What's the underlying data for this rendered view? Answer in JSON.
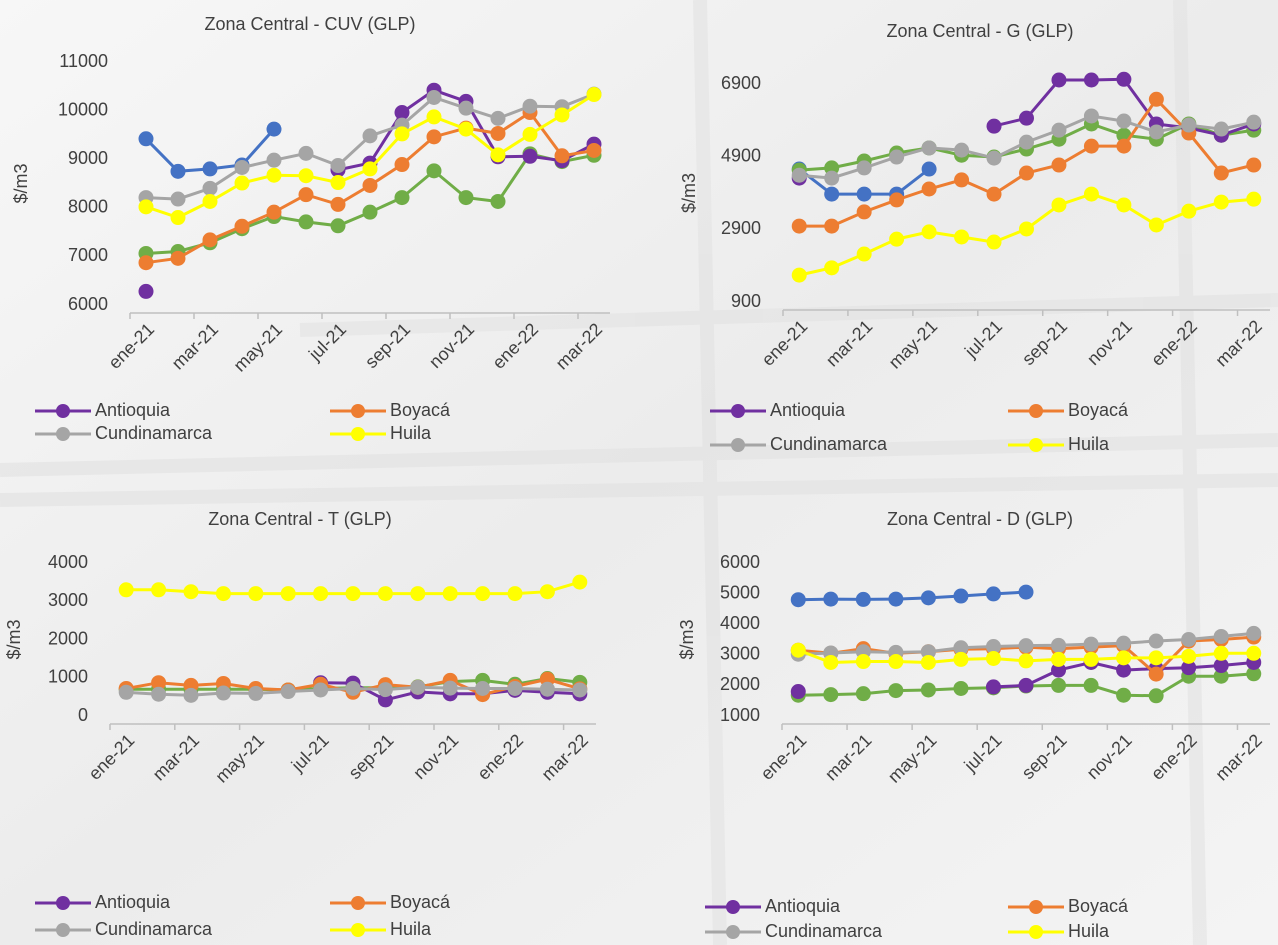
{
  "chart_data": [
    {
      "type": "line",
      "title": "Zona Central - CUV (GLP)",
      "y_label": "$/m3",
      "categories": [
        "ene-21",
        null,
        "mar-21",
        null,
        "may-21",
        null,
        "jul-21",
        null,
        "sep-21",
        null,
        "nov-21",
        null,
        "ene-22",
        null,
        "mar-22"
      ],
      "ylim": [
        6000,
        11000
      ],
      "yticks": [
        6000,
        7000,
        8000,
        9000,
        10000,
        11000
      ],
      "series": [
        {
          "color": "#4472c4",
          "values": [
            9420,
            8750,
            8800,
            8880,
            9620,
            null,
            null,
            null,
            null,
            null,
            null,
            null,
            null,
            null,
            null
          ]
        },
        {
          "color": "#70ad47",
          "values": [
            7060,
            7100,
            7280,
            7570,
            7820,
            7710,
            7630,
            7910,
            8210,
            8760,
            8210,
            8130,
            9110,
            8950,
            9080
          ]
        },
        {
          "name": "Antioquia",
          "color": "#7030a0",
          "values": [
            6280,
            null,
            null,
            null,
            null,
            null,
            8780,
            8920,
            9960,
            10420,
            10190,
            9050,
            9060,
            8970,
            9310
          ]
        },
        {
          "name": "Boyacá",
          "color": "#ed7d31",
          "values": [
            6870,
            6960,
            7340,
            7620,
            7910,
            8270,
            8070,
            8460,
            8890,
            9460,
            9640,
            9530,
            9960,
            9070,
            9180
          ]
        },
        {
          "name": "Cundinamarca",
          "color": "#a5a5a5",
          "values": [
            8210,
            8180,
            8400,
            8830,
            8980,
            9120,
            8870,
            9480,
            9700,
            10270,
            10050,
            9840,
            10090,
            10080,
            10340
          ]
        },
        {
          "name": "Huila",
          "color": "#ffff00",
          "values": [
            8020,
            7800,
            8130,
            8510,
            8670,
            8660,
            8520,
            8800,
            9520,
            9870,
            9620,
            9090,
            9510,
            9910,
            10330
          ]
        }
      ]
    },
    {
      "type": "line",
      "title": "Zona Central - G (GLP)",
      "y_label": "$/m3",
      "categories": [
        "ene-21",
        null,
        "mar-21",
        null,
        "may-21",
        null,
        "jul-21",
        null,
        "sep-21",
        null,
        "nov-21",
        null,
        "ene-22",
        null,
        "mar-22"
      ],
      "ylim": [
        900,
        6900
      ],
      "yticks": [
        900,
        2900,
        4900,
        6900
      ],
      "series": [
        {
          "color": "#4472c4",
          "values": [
            4560,
            3870,
            3870,
            3870,
            4560,
            null,
            null,
            null,
            null,
            null,
            null,
            null,
            null,
            null,
            null
          ]
        },
        {
          "color": "#70ad47",
          "values": [
            4530,
            4590,
            4780,
            5000,
            5140,
            4940,
            4890,
            5110,
            5380,
            5800,
            5490,
            5380,
            5800,
            5490,
            5630
          ]
        },
        {
          "name": "Antioquia",
          "color": "#7030a0",
          "values": [
            4310,
            null,
            null,
            null,
            null,
            null,
            5740,
            5960,
            7010,
            7010,
            7030,
            5800,
            5690,
            5490,
            5800
          ]
        },
        {
          "name": "Boyacá",
          "color": "#ed7d31",
          "values": [
            2990,
            2990,
            3380,
            3710,
            4010,
            4260,
            3870,
            4450,
            4670,
            5190,
            5190,
            6480,
            5550,
            4450,
            4670
          ]
        },
        {
          "name": "Cundinamarca",
          "color": "#a5a5a5",
          "values": [
            4390,
            4310,
            4590,
            4890,
            5140,
            5080,
            4860,
            5300,
            5630,
            6020,
            5880,
            5580,
            5770,
            5660,
            5850
          ]
        },
        {
          "name": "Huila",
          "color": "#ffff00",
          "values": [
            1640,
            1840,
            2220,
            2630,
            2830,
            2690,
            2550,
            2910,
            3570,
            3870,
            3570,
            3020,
            3400,
            3650,
            3730
          ]
        }
      ]
    },
    {
      "type": "line",
      "title": "Zona Central - T (GLP)",
      "y_label": "$/m3",
      "categories": [
        "ene-21",
        null,
        "mar-21",
        null,
        "may-21",
        null,
        "jul-21",
        null,
        "sep-21",
        null,
        "nov-21",
        null,
        "ene-22",
        null,
        "mar-22"
      ],
      "ylim": [
        0,
        4000
      ],
      "yticks": [
        0,
        1000,
        2000,
        3000,
        4000
      ],
      "series": [
        {
          "color": "#70ad47",
          "values": [
            700,
            700,
            700,
            700,
            700,
            680,
            720,
            740,
            740,
            760,
            900,
            930,
            830,
            980,
            880
          ]
        },
        {
          "name": "Antioquia",
          "color": "#7030a0",
          "values": [
            null,
            null,
            null,
            null,
            null,
            null,
            870,
            860,
            420,
            630,
            580,
            580,
            670,
            620,
            580
          ]
        },
        {
          "name": "Boyacá",
          "color": "#ed7d31",
          "values": [
            720,
            870,
            800,
            850,
            720,
            680,
            830,
            620,
            820,
            750,
            930,
            560,
            770,
            960,
            710
          ]
        },
        {
          "name": "Cundinamarca",
          "color": "#a5a5a5",
          "values": [
            620,
            570,
            540,
            600,
            590,
            640,
            680,
            720,
            690,
            750,
            730,
            720,
            720,
            700,
            680
          ]
        },
        {
          "name": "Huila",
          "color": "#ffff00",
          "values": [
            3300,
            3300,
            3250,
            3200,
            3200,
            3200,
            3200,
            3200,
            3200,
            3200,
            3200,
            3200,
            3200,
            3250,
            3500
          ]
        }
      ]
    },
    {
      "type": "line",
      "title": "Zona Central - D (GLP)",
      "y_label": "$/m3",
      "categories": [
        "ene-21",
        null,
        "mar-21",
        null,
        "may-21",
        null,
        "jul-21",
        null,
        "sep-21",
        null,
        "nov-21",
        null,
        "ene-22",
        null,
        "mar-22"
      ],
      "ylim": [
        1000,
        6000
      ],
      "yticks": [
        1000,
        2000,
        3000,
        4000,
        5000,
        6000
      ],
      "series": [
        {
          "color": "#4472c4",
          "values": [
            4800,
            4820,
            4810,
            4820,
            4860,
            4920,
            4990,
            5050,
            null,
            null,
            null,
            null,
            null,
            null,
            null
          ]
        },
        {
          "color": "#70ad47",
          "values": [
            1680,
            1700,
            1730,
            1830,
            1850,
            1900,
            1920,
            1980,
            2000,
            2000,
            1680,
            1660,
            2300,
            2300,
            2380
          ]
        },
        {
          "name": "Antioquia",
          "color": "#7030a0",
          "values": [
            1800,
            null,
            null,
            null,
            null,
            null,
            1950,
            2000,
            2500,
            2750,
            2500,
            2550,
            2580,
            2650,
            2750
          ]
        },
        {
          "name": "Boyacá",
          "color": "#ed7d31",
          "values": [
            3150,
            3050,
            3200,
            3050,
            3100,
            3180,
            3200,
            3250,
            3200,
            3250,
            3300,
            2370,
            3450,
            3500,
            3580
          ]
        },
        {
          "name": "Cundinamarca",
          "color": "#a5a5a5",
          "values": [
            3020,
            3060,
            3100,
            3080,
            3100,
            3230,
            3270,
            3300,
            3310,
            3350,
            3380,
            3450,
            3500,
            3600,
            3700
          ]
        },
        {
          "name": "Huila",
          "color": "#ffff00",
          "values": [
            3150,
            2750,
            2780,
            2780,
            2750,
            2850,
            2880,
            2800,
            2850,
            2850,
            2900,
            2900,
            2950,
            3050,
            3050
          ]
        }
      ]
    }
  ]
}
